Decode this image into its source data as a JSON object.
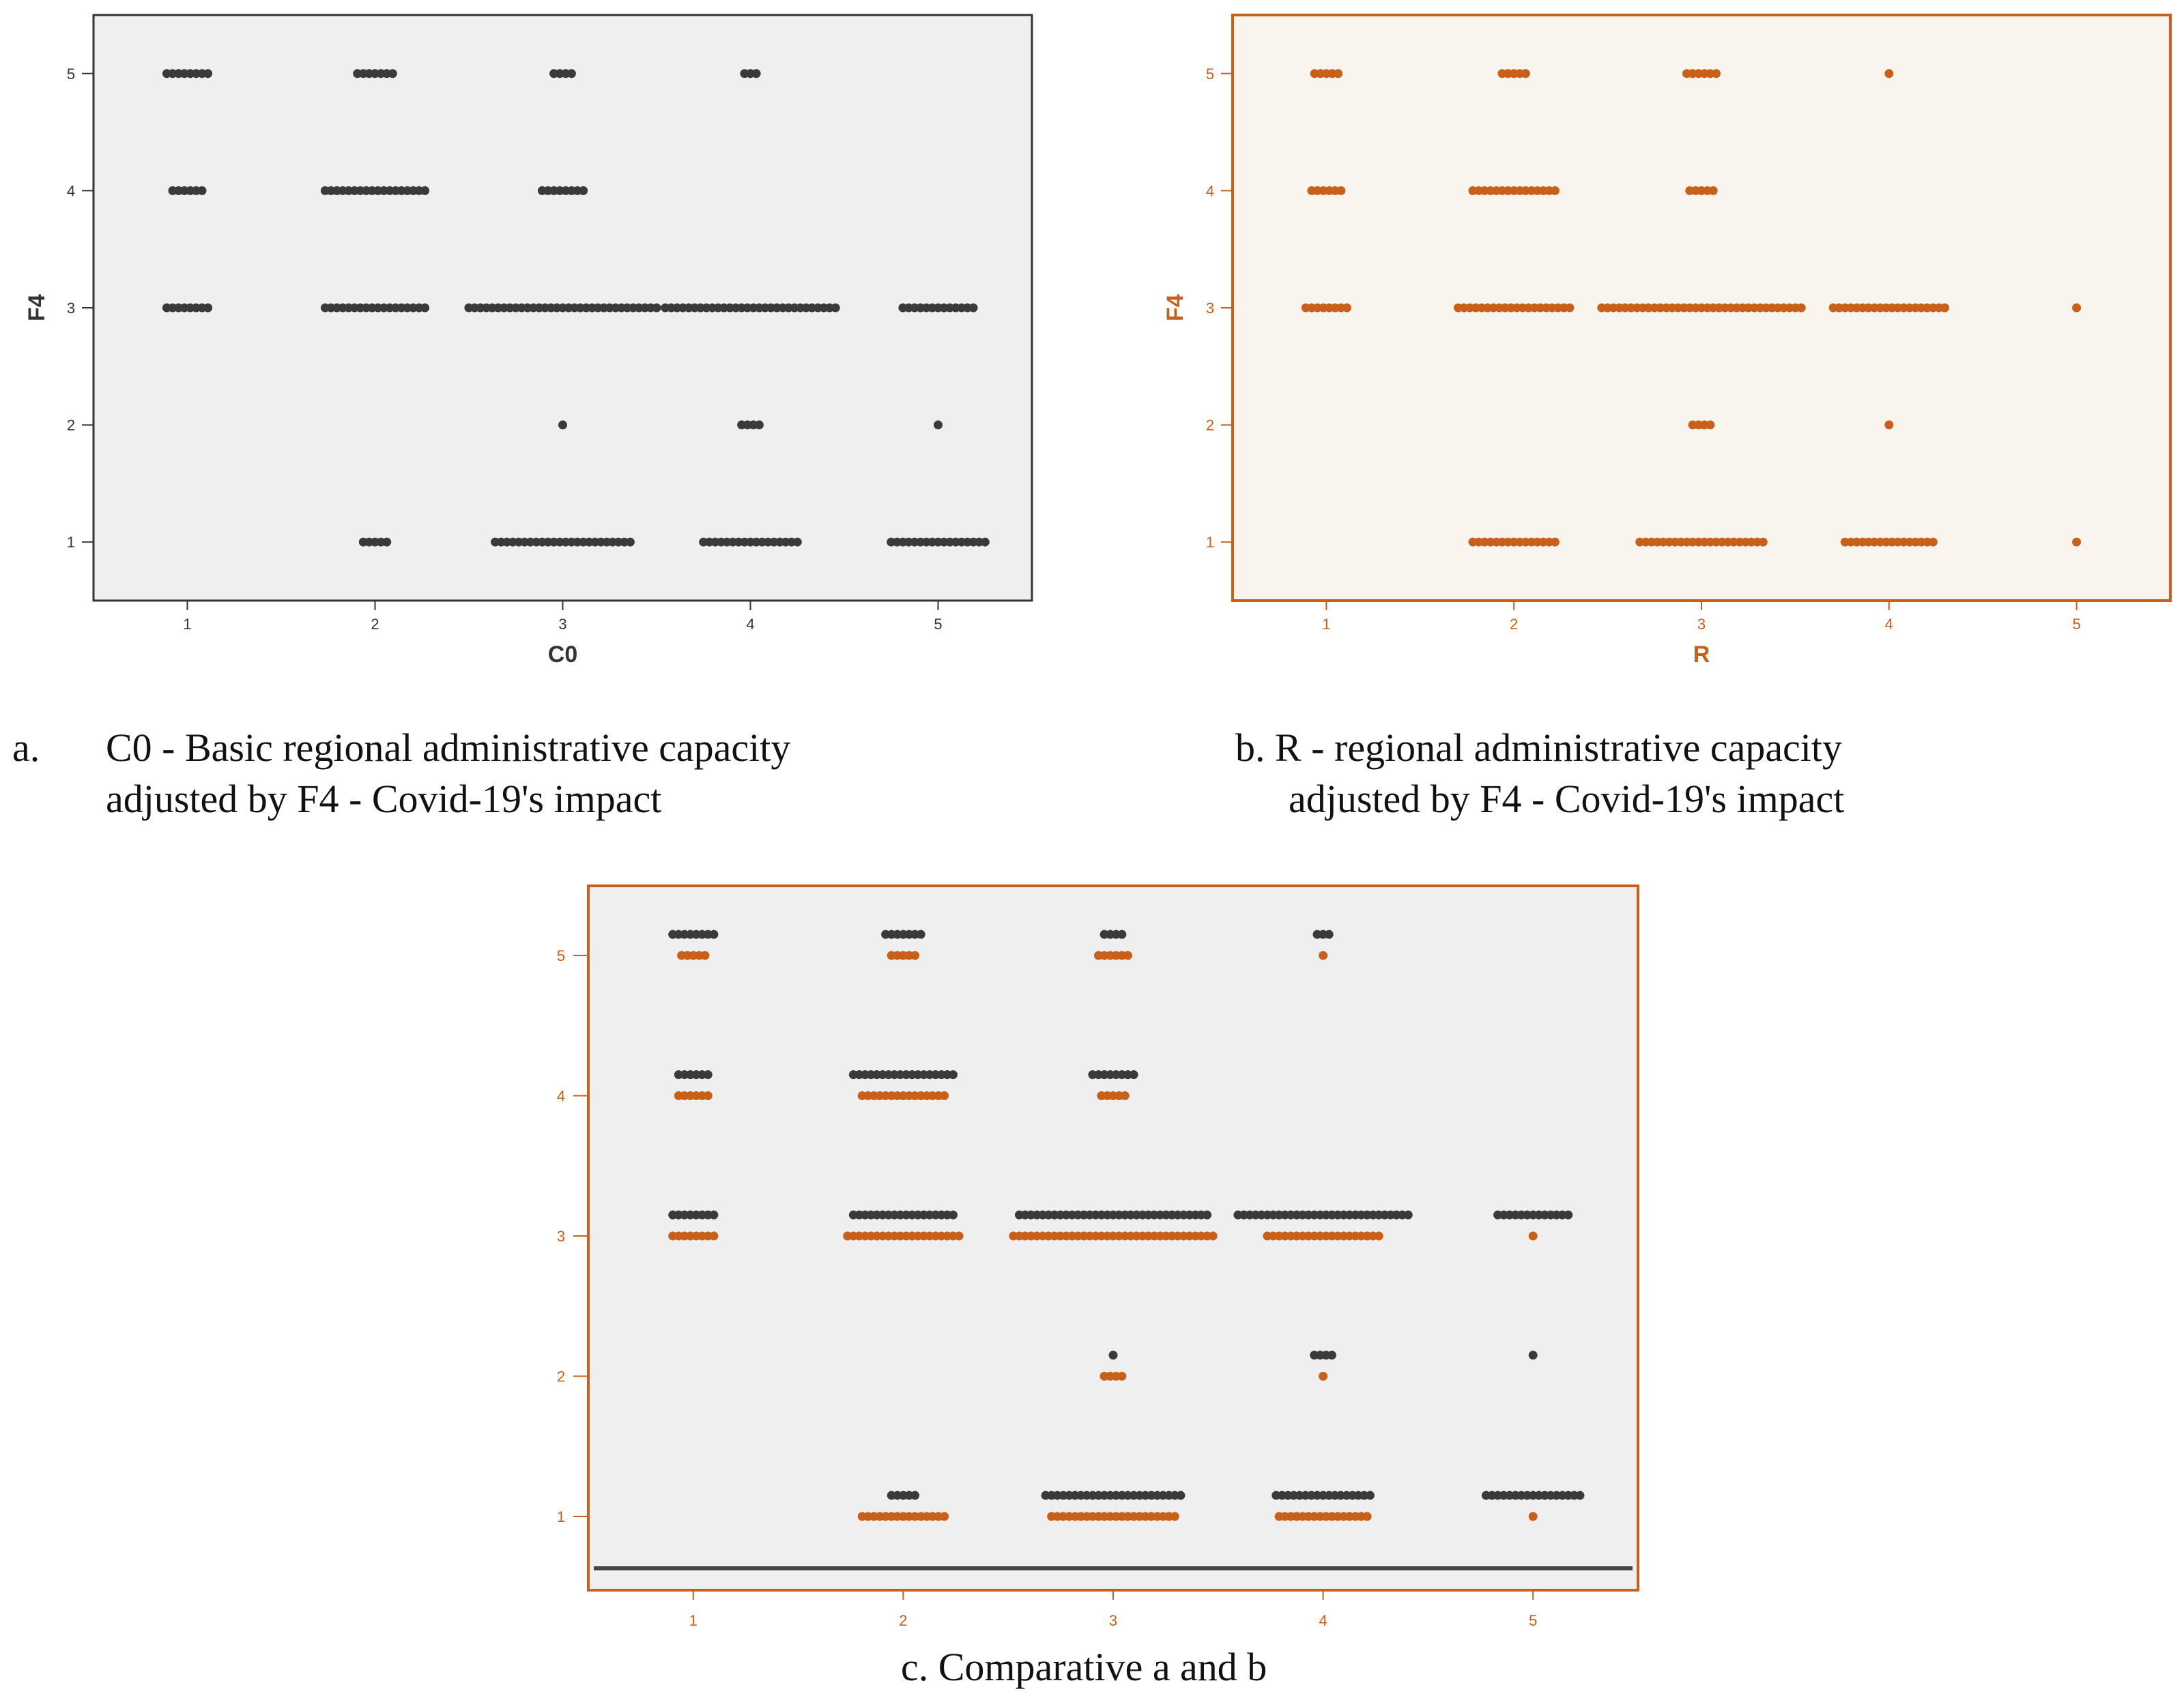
{
  "colors": {
    "black_series": "#3a3a3a",
    "orange_series": "#c8601a",
    "panel_gray": "#efefef",
    "panel_cream": "#faf4ee",
    "frame_dark": "#333333",
    "frame_orange": "#c8601a"
  },
  "captions": {
    "a_marker": "a.",
    "a_line1": "C0 - Basic regional administrative capacity",
    "a_line2": "adjusted by F4 - Covid-19's impact",
    "b_line1": "b. R - regional administrative capacity",
    "b_line2": "adjusted by F4 - Covid-19's impact",
    "c_line1": "c. Comparative a and b"
  },
  "chart_data": [
    {
      "id": "a",
      "type": "scatter",
      "title": "C0 - Basic regional administrative capacity adjusted by F4 - Covid-19's impact",
      "xlabel": "C0",
      "ylabel": "F4",
      "x_ticks": [
        "1",
        "2",
        "3",
        "4",
        "5"
      ],
      "y_ticks": [
        "1",
        "2",
        "3",
        "4",
        "5"
      ],
      "xlim": [
        0.5,
        5.5
      ],
      "ylim": [
        0.5,
        5.5
      ],
      "grid": false,
      "series": [
        {
          "name": "C0",
          "color": "#3a3a3a",
          "points": [
            {
              "x": 1,
              "y": 5,
              "n": 8
            },
            {
              "x": 1,
              "y": 4,
              "n": 6
            },
            {
              "x": 1,
              "y": 3,
              "n": 8
            },
            {
              "x": 2,
              "y": 5,
              "n": 7
            },
            {
              "x": 2,
              "y": 4,
              "n": 18
            },
            {
              "x": 2,
              "y": 3,
              "n": 18
            },
            {
              "x": 2,
              "y": 1,
              "n": 5
            },
            {
              "x": 3,
              "y": 5,
              "n": 4
            },
            {
              "x": 3,
              "y": 4,
              "n": 8
            },
            {
              "x": 3,
              "y": 3,
              "n": 33
            },
            {
              "x": 3,
              "y": 2,
              "n": 1
            },
            {
              "x": 3,
              "y": 1,
              "n": 24
            },
            {
              "x": 4,
              "y": 5,
              "n": 3
            },
            {
              "x": 4,
              "y": 3,
              "n": 30
            },
            {
              "x": 4,
              "y": 2,
              "n": 4
            },
            {
              "x": 4,
              "y": 1,
              "n": 17
            },
            {
              "x": 5,
              "y": 3,
              "n": 13
            },
            {
              "x": 5,
              "y": 2,
              "n": 1
            },
            {
              "x": 5,
              "y": 1,
              "n": 17
            }
          ]
        }
      ]
    },
    {
      "id": "b",
      "type": "scatter",
      "title": "R - regional administrative capacity adjusted by F4 - Covid-19's impact",
      "xlabel": "R",
      "ylabel": "F4",
      "x_ticks": [
        "1",
        "2",
        "3",
        "4",
        "5"
      ],
      "y_ticks": [
        "1",
        "2",
        "3",
        "4",
        "5"
      ],
      "xlim": [
        0.5,
        5.5
      ],
      "ylim": [
        0.5,
        5.5
      ],
      "grid": false,
      "series": [
        {
          "name": "R",
          "color": "#c8601a",
          "points": [
            {
              "x": 1,
              "y": 5,
              "n": 5
            },
            {
              "x": 1,
              "y": 4,
              "n": 6
            },
            {
              "x": 1,
              "y": 3,
              "n": 8
            },
            {
              "x": 2,
              "y": 5,
              "n": 5
            },
            {
              "x": 2,
              "y": 4,
              "n": 15
            },
            {
              "x": 2,
              "y": 3,
              "n": 20
            },
            {
              "x": 2,
              "y": 1,
              "n": 15
            },
            {
              "x": 3,
              "y": 5,
              "n": 6
            },
            {
              "x": 3,
              "y": 4,
              "n": 5
            },
            {
              "x": 3,
              "y": 3,
              "n": 35
            },
            {
              "x": 3,
              "y": 2,
              "n": 4
            },
            {
              "x": 3,
              "y": 1,
              "n": 22
            },
            {
              "x": 4,
              "y": 5,
              "n": 1
            },
            {
              "x": 4,
              "y": 3,
              "n": 20
            },
            {
              "x": 4,
              "y": 2,
              "n": 1
            },
            {
              "x": 4,
              "y": 1,
              "n": 16
            },
            {
              "x": 5,
              "y": 3,
              "n": 1
            },
            {
              "x": 5,
              "y": 1,
              "n": 1
            }
          ]
        }
      ]
    },
    {
      "id": "c",
      "type": "scatter",
      "title": "c. Comparative a and b",
      "xlabel": "",
      "ylabel": "",
      "x_ticks": [
        "1",
        "2",
        "3",
        "4",
        "5"
      ],
      "y_ticks": [
        "1",
        "2",
        "3",
        "4",
        "5"
      ],
      "xlim": [
        0.5,
        5.5
      ],
      "ylim": [
        0.5,
        5.5
      ],
      "grid": false,
      "series": [
        {
          "name": "C0",
          "color": "#3a3a3a",
          "y_offset": 0.15,
          "points": [
            {
              "x": 1,
              "y": 5,
              "n": 8
            },
            {
              "x": 1,
              "y": 4,
              "n": 6
            },
            {
              "x": 1,
              "y": 3,
              "n": 8
            },
            {
              "x": 2,
              "y": 5,
              "n": 7
            },
            {
              "x": 2,
              "y": 4,
              "n": 18
            },
            {
              "x": 2,
              "y": 3,
              "n": 18
            },
            {
              "x": 2,
              "y": 1,
              "n": 5
            },
            {
              "x": 3,
              "y": 5,
              "n": 4
            },
            {
              "x": 3,
              "y": 4,
              "n": 8
            },
            {
              "x": 3,
              "y": 3,
              "n": 33
            },
            {
              "x": 3,
              "y": 2,
              "n": 1
            },
            {
              "x": 3,
              "y": 1,
              "n": 24
            },
            {
              "x": 4,
              "y": 5,
              "n": 3
            },
            {
              "x": 4,
              "y": 3,
              "n": 30
            },
            {
              "x": 4,
              "y": 2,
              "n": 4
            },
            {
              "x": 4,
              "y": 1,
              "n": 17
            },
            {
              "x": 5,
              "y": 3,
              "n": 13
            },
            {
              "x": 5,
              "y": 2,
              "n": 1
            },
            {
              "x": 5,
              "y": 1,
              "n": 17
            }
          ]
        },
        {
          "name": "R",
          "color": "#c8601a",
          "y_offset": 0,
          "points": [
            {
              "x": 1,
              "y": 5,
              "n": 5
            },
            {
              "x": 1,
              "y": 4,
              "n": 6
            },
            {
              "x": 1,
              "y": 3,
              "n": 8
            },
            {
              "x": 2,
              "y": 5,
              "n": 5
            },
            {
              "x": 2,
              "y": 4,
              "n": 15
            },
            {
              "x": 2,
              "y": 3,
              "n": 20
            },
            {
              "x": 2,
              "y": 1,
              "n": 15
            },
            {
              "x": 3,
              "y": 5,
              "n": 6
            },
            {
              "x": 3,
              "y": 4,
              "n": 5
            },
            {
              "x": 3,
              "y": 3,
              "n": 35
            },
            {
              "x": 3,
              "y": 2,
              "n": 4
            },
            {
              "x": 3,
              "y": 1,
              "n": 22
            },
            {
              "x": 4,
              "y": 5,
              "n": 1
            },
            {
              "x": 4,
              "y": 3,
              "n": 20
            },
            {
              "x": 4,
              "y": 2,
              "n": 1
            },
            {
              "x": 4,
              "y": 1,
              "n": 16
            },
            {
              "x": 5,
              "y": 3,
              "n": 1
            },
            {
              "x": 5,
              "y": 1,
              "n": 1
            }
          ]
        }
      ]
    }
  ]
}
